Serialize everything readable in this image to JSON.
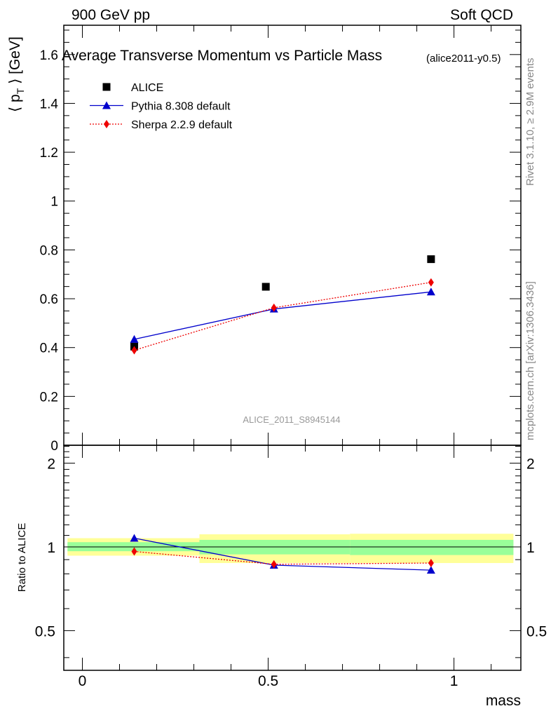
{
  "header": {
    "left": "900 GeV pp",
    "right": "Soft QCD"
  },
  "side_text": {
    "rivet": "Rivet 3.1.10, ≥ 2.9M events",
    "mcplots": "mcplots.cern.ch [arXiv:1306.3436]"
  },
  "chart_data": [
    {
      "type": "scatter",
      "title": "Average Transverse Momentum vs Particle Mass",
      "subtitle": "(alice2011-y0.5)",
      "ylabel": "⟨ p_T ⟩ [GeV]",
      "xlabel": "",
      "xlim": [
        -0.05,
        1.18
      ],
      "ylim": [
        0,
        1.72
      ],
      "yticks": [
        0,
        0.2,
        0.4,
        0.6,
        0.8,
        1,
        1.2,
        1.4,
        1.6
      ],
      "ytick_labels": [
        "0",
        "0.2",
        "0.4",
        "0.6",
        "0.8",
        "1",
        "1.2",
        "1.4",
        "1.6"
      ],
      "watermark": "ALICE_2011_S8945144",
      "legend_position": "top-left",
      "series": [
        {
          "name": "ALICE",
          "style": "data",
          "color": "#000000",
          "marker": "square",
          "x": [
            0.1396,
            0.4937,
            0.9383
          ],
          "y": [
            0.404,
            0.649,
            0.762
          ]
        },
        {
          "name": "Pythia 8.308 default",
          "style": "solid",
          "color": "#0000cc",
          "marker": "triangle",
          "x": [
            0.1396,
            0.5155,
            0.9383
          ],
          "y": [
            0.434,
            0.558,
            0.628
          ]
        },
        {
          "name": "Sherpa 2.2.9 default",
          "style": "dotted",
          "color": "#ee0000",
          "marker": "diamond",
          "x": [
            0.1396,
            0.5155,
            0.9383
          ],
          "y": [
            0.389,
            0.563,
            0.667
          ]
        }
      ]
    },
    {
      "type": "line",
      "ylabel": "Ratio to ALICE",
      "xlabel": "mass",
      "xlim": [
        -0.05,
        1.18
      ],
      "ylim": [
        0.36,
        2.32
      ],
      "ylog": true,
      "xticks": [
        0,
        0.5,
        1
      ],
      "xtick_labels": [
        "0",
        "0.5",
        "1"
      ],
      "yticks": [
        0.5,
        1,
        2
      ],
      "ytick_labels": [
        "0.5",
        "1",
        "2"
      ],
      "bands": [
        {
          "x0": -0.04,
          "x1": 0.315,
          "inner": [
            0.965,
            1.04
          ],
          "outer": [
            0.93,
            1.075
          ]
        },
        {
          "x0": 0.315,
          "x1": 0.72,
          "inner": [
            0.94,
            1.06
          ],
          "outer": [
            0.875,
            1.11
          ]
        },
        {
          "x0": 0.72,
          "x1": 1.16,
          "inner": [
            0.935,
            1.06
          ],
          "outer": [
            0.875,
            1.115
          ]
        }
      ],
      "series": [
        {
          "name": "Pythia 8.308 default",
          "color": "#0000cc",
          "marker": "triangle",
          "style": "solid",
          "x": [
            0.1396,
            0.5155,
            0.9383
          ],
          "y": [
            1.075,
            0.86,
            0.825
          ]
        },
        {
          "name": "Sherpa 2.2.9 default",
          "color": "#ee0000",
          "marker": "diamond",
          "style": "dotted",
          "x": [
            0.1396,
            0.5155,
            0.9383
          ],
          "y": [
            0.963,
            0.866,
            0.875
          ]
        }
      ]
    }
  ],
  "colors": {
    "band_inner": "#99ff99",
    "band_outer": "#ffff99"
  }
}
